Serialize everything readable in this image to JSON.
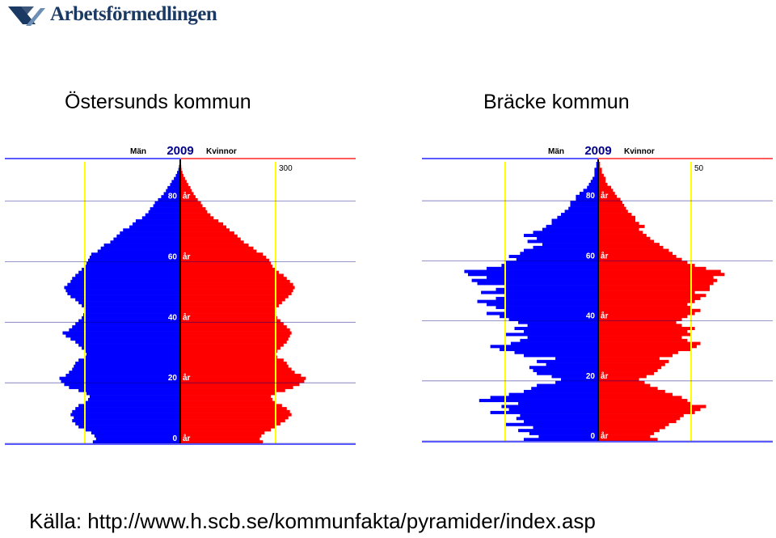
{
  "header": {
    "logo_text": "Arbetsförmedlingen"
  },
  "colors": {
    "male": "#0000ff",
    "female": "#ff0000",
    "reference": "#ffff00",
    "logo": "#1b3a63"
  },
  "chart_data": [
    {
      "type": "bar",
      "orientation": "horizontal",
      "title": "Östersunds kommun",
      "year": "2009",
      "left_label": "Män",
      "right_label": "Kvinnor",
      "scale_label": "300",
      "age_ticks": [
        "0",
        "20",
        "40",
        "60",
        "80"
      ],
      "age_unit": "år",
      "series": [
        {
          "name": "Män",
          "values": [
            275,
            265,
            270,
            280,
            300,
            320,
            330,
            340,
            335,
            345,
            340,
            330,
            320,
            300,
            290,
            285,
            295,
            320,
            350,
            365,
            375,
            380,
            360,
            350,
            340,
            335,
            330,
            320,
            300,
            295,
            300,
            310,
            320,
            330,
            345,
            360,
            370,
            350,
            340,
            330,
            320,
            310,
            305,
            300,
            300,
            310,
            320,
            330,
            345,
            355,
            360,
            365,
            355,
            345,
            340,
            330,
            320,
            310,
            300,
            295,
            290,
            285,
            280,
            260,
            250,
            240,
            220,
            210,
            200,
            190,
            180,
            160,
            150,
            140,
            120,
            110,
            100,
            95,
            85,
            80,
            70,
            60,
            52,
            45,
            40,
            32,
            27,
            20,
            14,
            10,
            6,
            4,
            2
          ]
        },
        {
          "name": "Kvinnor",
          "values": [
            260,
            250,
            255,
            265,
            285,
            300,
            315,
            330,
            340,
            350,
            345,
            335,
            320,
            300,
            290,
            285,
            300,
            330,
            355,
            375,
            390,
            395,
            380,
            360,
            350,
            340,
            335,
            325,
            305,
            300,
            305,
            315,
            325,
            335,
            340,
            345,
            350,
            345,
            335,
            325,
            315,
            305,
            300,
            300,
            300,
            310,
            320,
            330,
            340,
            350,
            355,
            360,
            355,
            345,
            335,
            325,
            310,
            300,
            290,
            285,
            280,
            270,
            260,
            240,
            230,
            215,
            200,
            190,
            180,
            170,
            155,
            145,
            135,
            120,
            105,
            95,
            85,
            80,
            70,
            65,
            55,
            48,
            42,
            36,
            32,
            25,
            20,
            15,
            10,
            7,
            4,
            3,
            2
          ]
        }
      ]
    },
    {
      "type": "bar",
      "orientation": "horizontal",
      "title": "Bräcke kommun",
      "year": "2009",
      "left_label": "Män",
      "right_label": "Kvinnor",
      "scale_label": "50",
      "age_ticks": [
        "0",
        "20",
        "40",
        "60",
        "80"
      ],
      "age_unit": "år",
      "series": [
        {
          "name": "Män",
          "values": [
            40,
            32,
            37,
            43,
            35,
            50,
            40,
            44,
            42,
            58,
            48,
            52,
            43,
            64,
            58,
            48,
            40,
            36,
            33,
            23,
            20,
            25,
            33,
            35,
            37,
            28,
            33,
            23,
            40,
            45,
            53,
            58,
            47,
            42,
            38,
            50,
            40,
            45,
            38,
            43,
            48,
            53,
            60,
            50,
            55,
            60,
            65,
            55,
            50,
            63,
            55,
            50,
            65,
            68,
            60,
            70,
            72,
            60,
            52,
            50,
            44,
            48,
            42,
            40,
            35,
            30,
            38,
            33,
            40,
            35,
            30,
            28,
            25,
            25,
            22,
            20,
            18,
            16,
            15,
            15,
            12,
            12,
            10,
            8,
            6,
            5,
            4,
            3,
            2,
            2,
            2,
            1,
            1
          ]
        },
        {
          "name": "Kvinnor",
          "values": [
            32,
            28,
            30,
            33,
            36,
            38,
            42,
            44,
            46,
            52,
            55,
            58,
            50,
            48,
            45,
            40,
            36,
            32,
            28,
            25,
            22,
            26,
            30,
            32,
            34,
            36,
            38,
            33,
            40,
            43,
            50,
            53,
            55,
            48,
            45,
            50,
            48,
            52,
            45,
            42,
            45,
            48,
            52,
            55,
            50,
            48,
            52,
            55,
            58,
            52,
            60,
            60,
            62,
            64,
            62,
            68,
            66,
            58,
            52,
            48,
            45,
            42,
            40,
            38,
            35,
            33,
            30,
            28,
            26,
            24,
            22,
            25,
            22,
            20,
            20,
            18,
            16,
            15,
            14,
            13,
            12,
            10,
            9,
            8,
            7,
            5,
            4,
            4,
            3,
            2,
            2,
            1,
            1
          ]
        }
      ]
    }
  ],
  "source": {
    "text": "Källa: http://www.h.scb.se/kommunfakta/pyramider/index.asp"
  }
}
